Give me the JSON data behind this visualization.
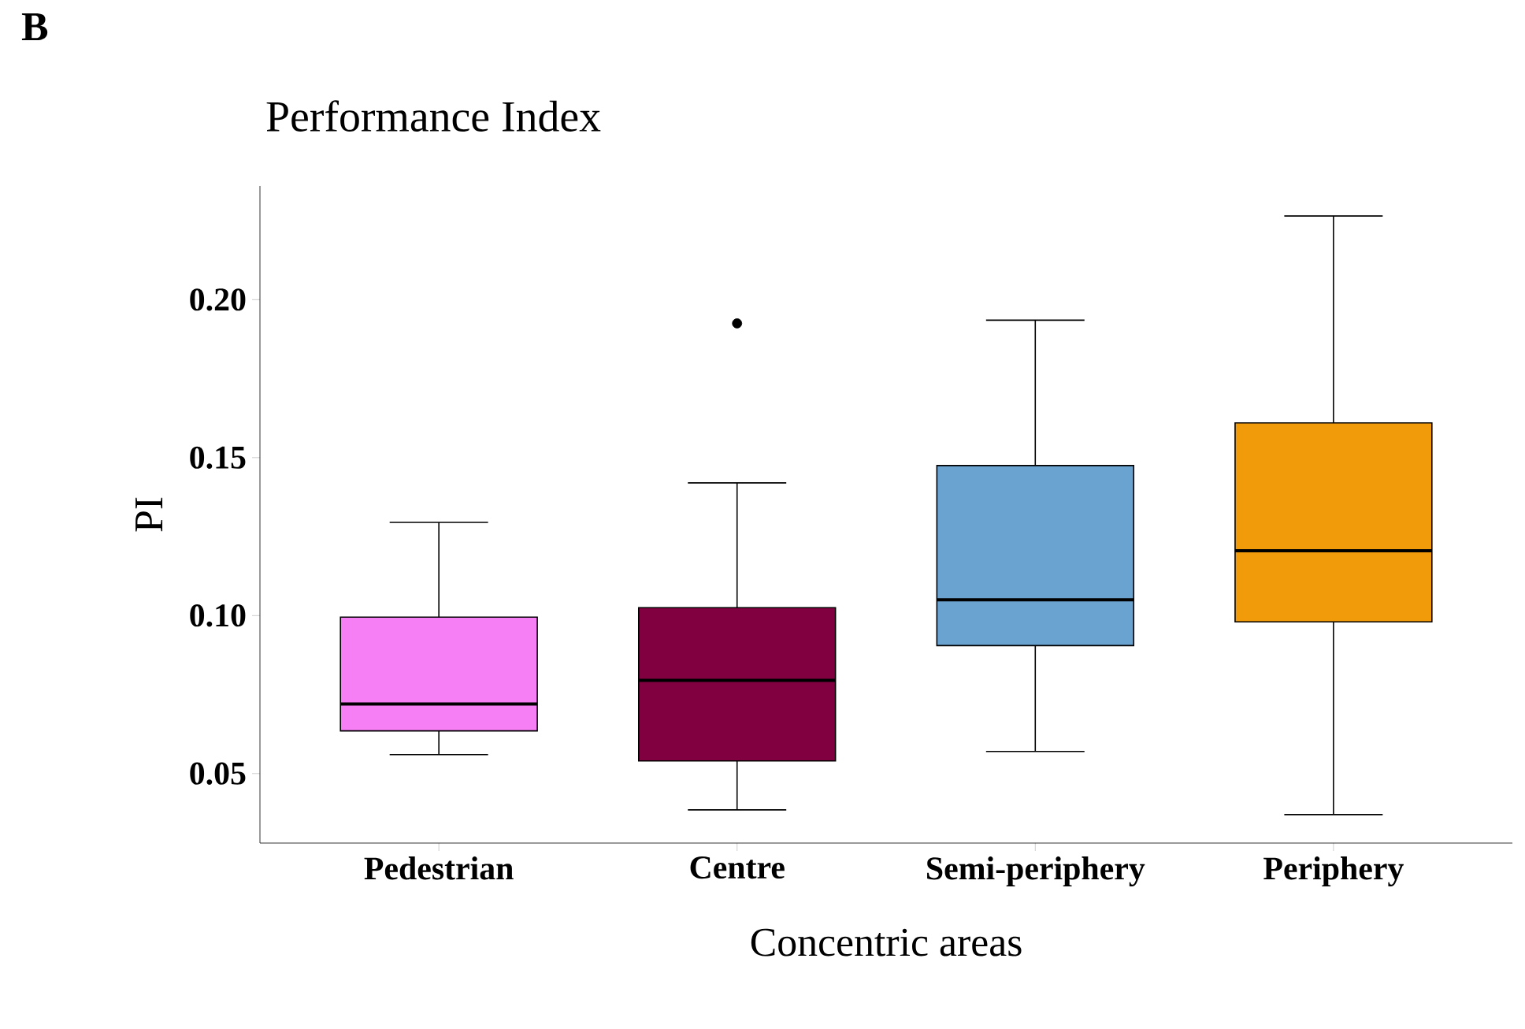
{
  "chart_data": {
    "type": "box",
    "title": "Performance Index",
    "xlabel": "Concentric areas",
    "ylabel": "PI",
    "annotations": [
      "B"
    ],
    "categories": [
      "Pedestrian",
      "Centre",
      "Semi-periphery",
      "Periphery"
    ],
    "colors": [
      "#f77ff5",
      "#800040",
      "#6aa3cf",
      "#f19b0b"
    ],
    "boxes": [
      {
        "low": 0.056,
        "q1": 0.0635,
        "median": 0.072,
        "q3": 0.0995,
        "high": 0.1295
      },
      {
        "low": 0.0385,
        "q1": 0.054,
        "median": 0.0795,
        "q3": 0.1025,
        "high": 0.142,
        "outliers": [
          0.1925
        ]
      },
      {
        "low": 0.057,
        "q1": 0.0905,
        "median": 0.105,
        "q3": 0.1475,
        "high": 0.1935
      },
      {
        "low": 0.037,
        "q1": 0.098,
        "median": 0.1205,
        "q3": 0.161,
        "high": 0.2265
      }
    ],
    "ylim": [
      0.028,
      0.236
    ],
    "yticks": [
      {
        "value": 0.05,
        "label": "0.05"
      },
      {
        "value": 0.1,
        "label": "0.10"
      },
      {
        "value": 0.15,
        "label": "0.15"
      },
      {
        "value": 0.2,
        "label": "0.20"
      }
    ]
  }
}
